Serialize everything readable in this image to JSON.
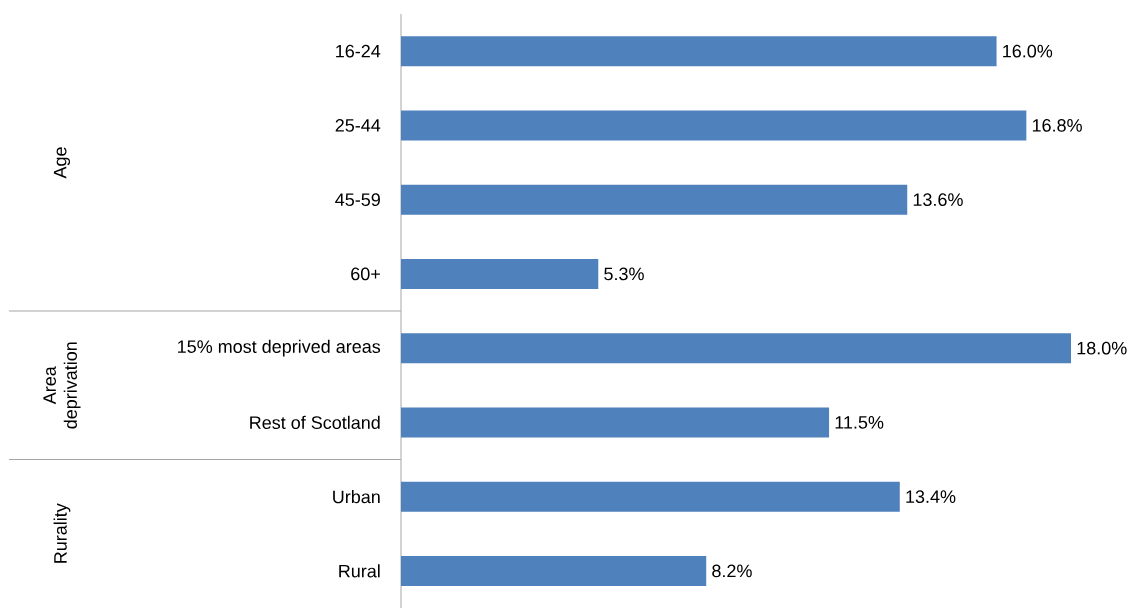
{
  "chart_data": {
    "type": "bar",
    "orientation": "horizontal",
    "categories": [
      "16-24",
      "25-44",
      "45-59",
      "60+",
      "15% most deprived areas",
      "Rest of Scotland",
      "Urban",
      "Rural"
    ],
    "values": [
      16.0,
      16.8,
      13.6,
      5.3,
      18.0,
      11.5,
      13.4,
      8.2
    ],
    "value_labels": [
      "16.0%",
      "16.8%",
      "13.6%",
      "5.3%",
      "18.0%",
      "11.5%",
      "13.4%",
      "8.2%"
    ],
    "color": "#4f81bd",
    "annotations": [
      "Age",
      "Area deprivation",
      "Rurality"
    ]
  }
}
